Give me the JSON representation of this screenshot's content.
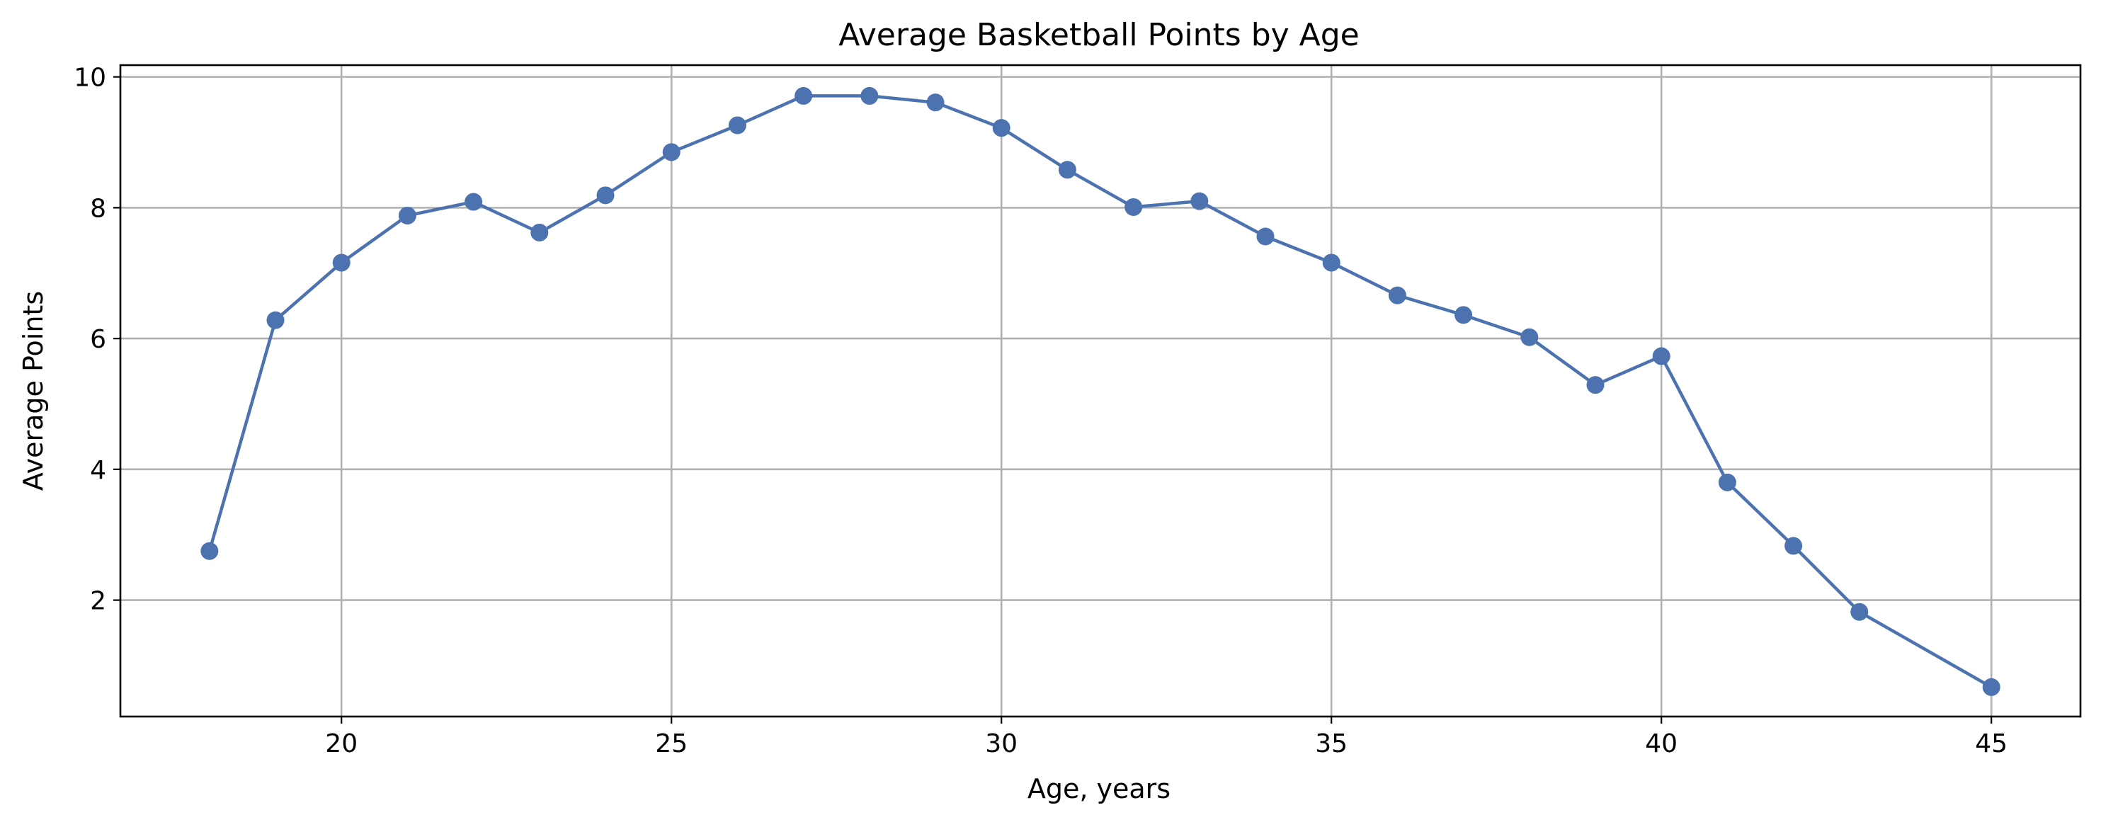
{
  "chart_data": {
    "type": "line",
    "title": "Average Basketball Points by Age",
    "xlabel": "Age, years",
    "ylabel": "Average Points",
    "xlim": [
      16.65,
      46.35
    ],
    "ylim": [
      0.22,
      10.18
    ],
    "xticks": [
      20,
      25,
      30,
      35,
      40,
      45
    ],
    "yticks": [
      2,
      4,
      6,
      8,
      10
    ],
    "grid": true,
    "color": "#4c72b0",
    "series": [
      {
        "x": [
          18,
          19,
          20,
          21,
          22,
          23,
          24,
          25,
          26,
          27,
          28,
          29,
          30,
          31,
          32,
          33,
          34,
          35,
          36,
          37,
          38,
          39,
          40,
          41,
          42,
          43,
          45
        ],
        "values": [
          2.75,
          6.28,
          7.16,
          7.88,
          8.09,
          7.62,
          8.19,
          8.85,
          9.26,
          9.71,
          9.71,
          9.61,
          9.22,
          8.58,
          8.01,
          8.1,
          7.56,
          7.16,
          6.66,
          6.36,
          6.02,
          5.29,
          5.73,
          3.8,
          2.83,
          1.82,
          0.67
        ]
      }
    ]
  }
}
